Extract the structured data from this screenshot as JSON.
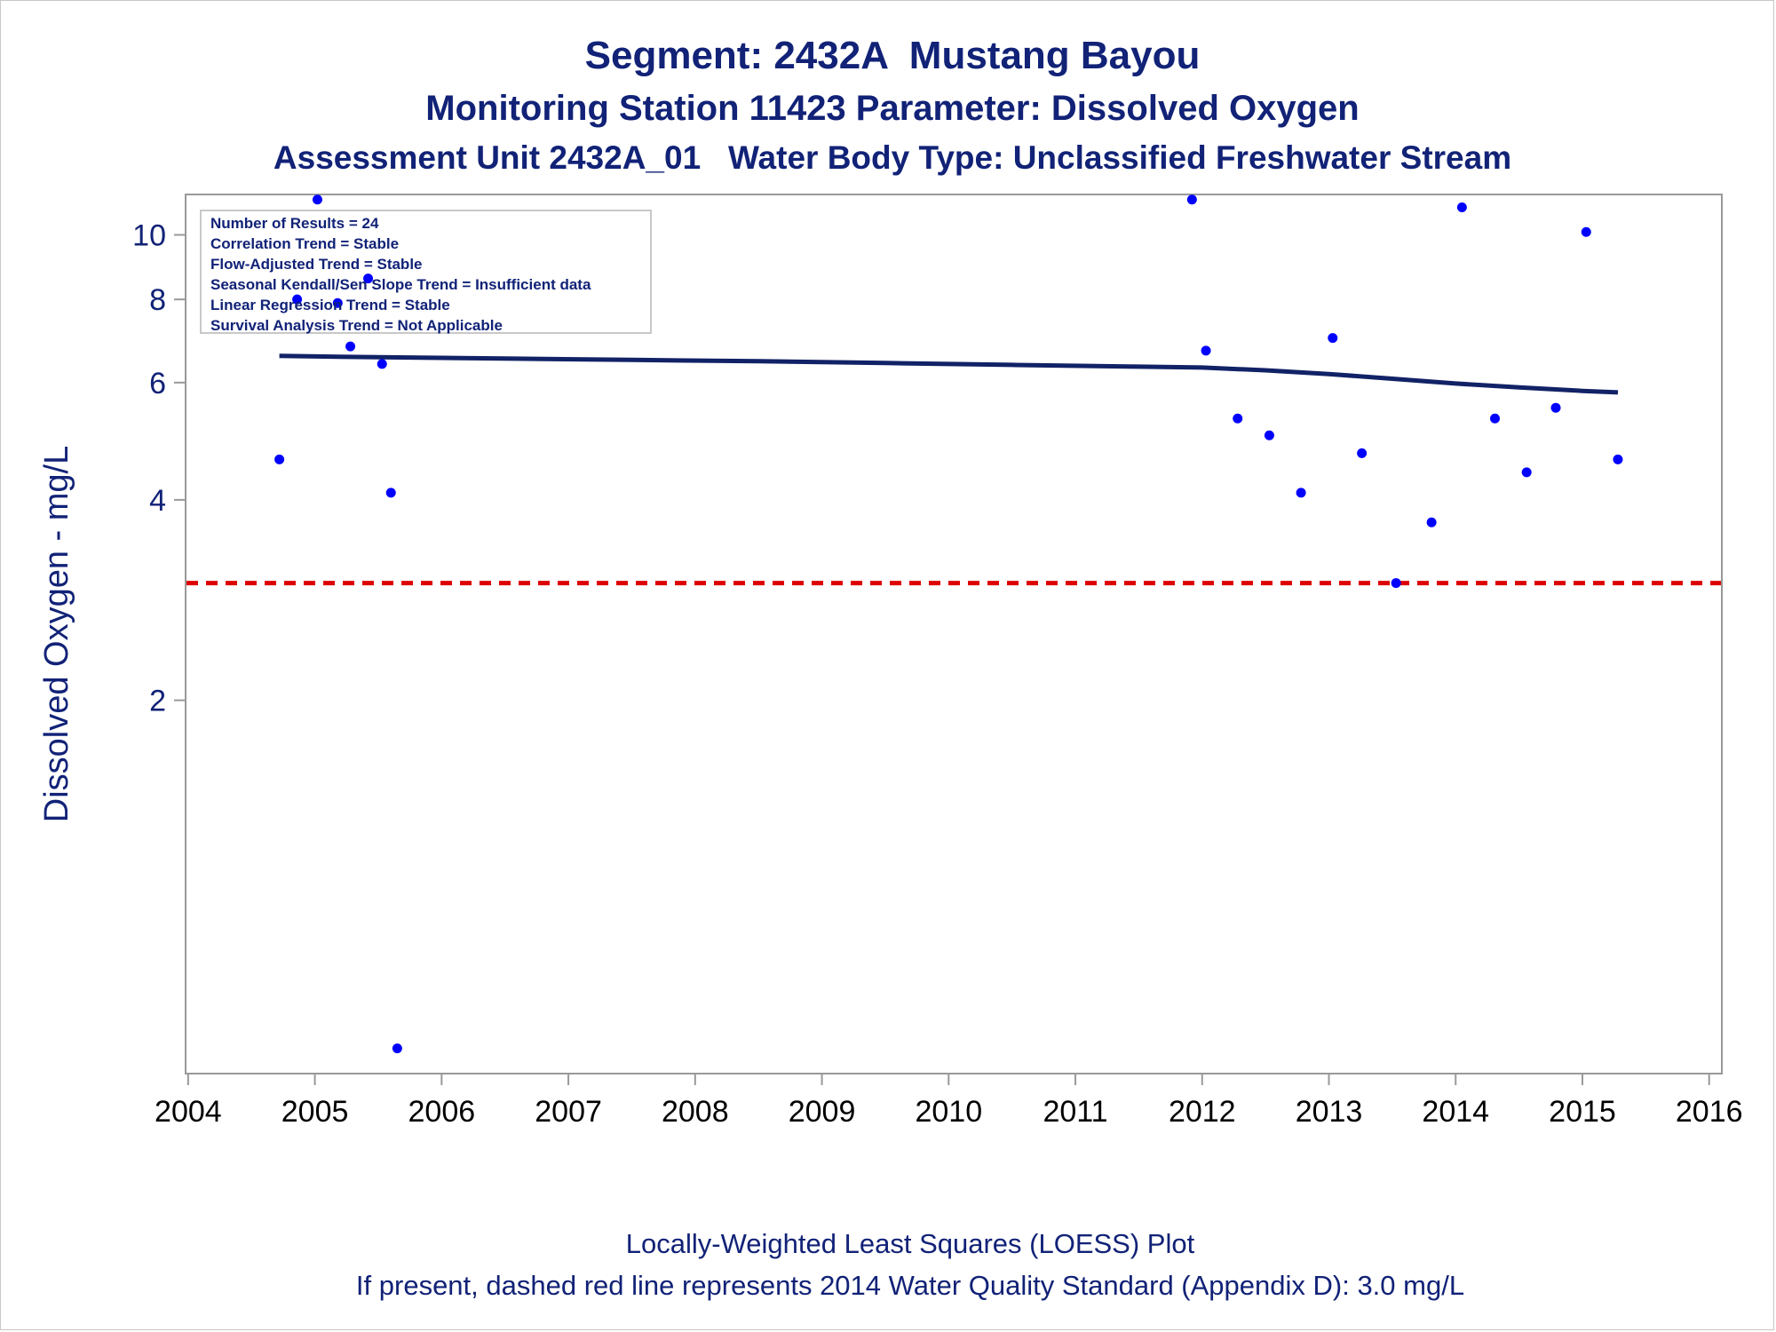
{
  "titles": {
    "line1": "Segment: 2432A  Mustang Bayou",
    "line2": "Monitoring Station 11423 Parameter: Dissolved Oxygen",
    "line3": "Assessment Unit 2432A_01   Water Body Type: Unclassified Freshwater Stream"
  },
  "footnotes": {
    "line1": "Locally-Weighted Least Squares (LOESS) Plot",
    "line2": "If present, dashed red line represents 2014 Water Quality Standard (Appendix D): 3.0 mg/L"
  },
  "stats_box": [
    "Number of Results = 24",
    "Correlation Trend = Stable",
    "Flow-Adjusted Trend = Stable",
    "Seasonal Kendall/Sen Slope Trend = Insufficient data",
    "Linear Regression Trend = Stable",
    "Survival Analysis Trend = Not Applicable"
  ],
  "chart_data": {
    "type": "scatter",
    "ylabel": "Dissolved Oxygen - mg/L",
    "xlabel": "",
    "y_scale": "log",
    "x_ticks": [
      2004,
      2005,
      2006,
      2007,
      2008,
      2009,
      2010,
      2011,
      2012,
      2013,
      2014,
      2015,
      2016
    ],
    "y_ticks": [
      2,
      4,
      6,
      8,
      10
    ],
    "xlim": [
      2003.98,
      2016.1
    ],
    "ylim": [
      0.55,
      11.5
    ],
    "grid": false,
    "colors": {
      "points": "#0000ff",
      "loess": "#112266",
      "standard": "#dd0000",
      "text": "#112277",
      "axis": "#999999"
    },
    "points": [
      {
        "x": 2004.72,
        "y": 4.6
      },
      {
        "x": 2004.86,
        "y": 8.0
      },
      {
        "x": 2005.02,
        "y": 11.3
      },
      {
        "x": 2005.18,
        "y": 7.9
      },
      {
        "x": 2005.28,
        "y": 6.8
      },
      {
        "x": 2005.42,
        "y": 8.6
      },
      {
        "x": 2005.53,
        "y": 6.4
      },
      {
        "x": 2005.6,
        "y": 4.1
      },
      {
        "x": 2005.65,
        "y": 0.6
      },
      {
        "x": 2011.92,
        "y": 11.3
      },
      {
        "x": 2012.03,
        "y": 6.7
      },
      {
        "x": 2012.28,
        "y": 5.3
      },
      {
        "x": 2012.53,
        "y": 5.0
      },
      {
        "x": 2012.78,
        "y": 4.1
      },
      {
        "x": 2013.03,
        "y": 7.0
      },
      {
        "x": 2013.26,
        "y": 4.7
      },
      {
        "x": 2013.53,
        "y": 3.0
      },
      {
        "x": 2013.81,
        "y": 3.7
      },
      {
        "x": 2014.05,
        "y": 11.0
      },
      {
        "x": 2014.31,
        "y": 5.3
      },
      {
        "x": 2014.56,
        "y": 4.4
      },
      {
        "x": 2014.79,
        "y": 5.5
      },
      {
        "x": 2015.03,
        "y": 10.1
      },
      {
        "x": 2015.28,
        "y": 4.6
      }
    ],
    "loess": {
      "x": [
        2004.72,
        2005.5,
        2006.5,
        2007.5,
        2008.5,
        2009.5,
        2010.5,
        2011.5,
        2012.0,
        2012.5,
        2013.0,
        2013.5,
        2014.0,
        2014.5,
        2015.0,
        2015.28
      ],
      "y": [
        6.58,
        6.55,
        6.52,
        6.49,
        6.46,
        6.42,
        6.38,
        6.34,
        6.32,
        6.26,
        6.18,
        6.08,
        5.98,
        5.9,
        5.83,
        5.8
      ]
    },
    "standard_line": {
      "y": 3.0,
      "style": "dashed"
    }
  }
}
